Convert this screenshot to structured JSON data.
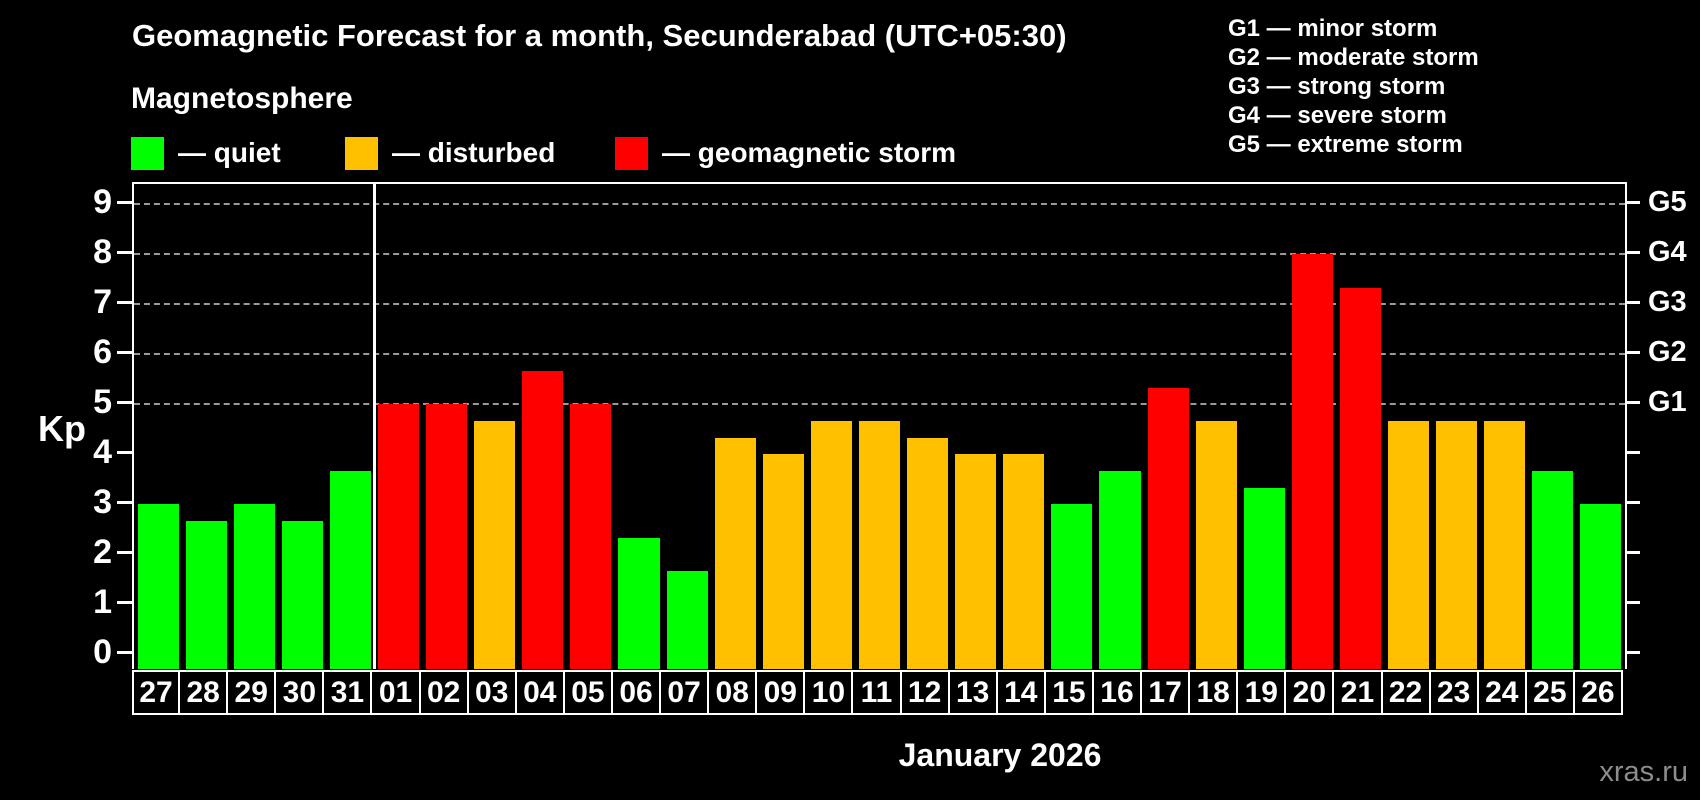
{
  "header": {
    "title": "Geomagnetic Forecast for a month, Secunderabad (UTC+05:30)",
    "subtitle": "Magnetosphere"
  },
  "legend": [
    {
      "key": "quiet",
      "label": "— quiet"
    },
    {
      "key": "disturbed",
      "label": "— disturbed"
    },
    {
      "key": "storm",
      "label": "— geomagnetic storm"
    }
  ],
  "g_legend": [
    "G1 — minor storm",
    "G2 — moderate storm",
    "G3 — strong storm",
    "G4 — severe storm",
    "G5 — extreme storm"
  ],
  "axis": {
    "ylabel": "Kp",
    "y_ticks": [
      0,
      1,
      2,
      3,
      4,
      5,
      6,
      7,
      8,
      9
    ],
    "right_labels": [
      {
        "label": "G1",
        "value": 5
      },
      {
        "label": "G2",
        "value": 6
      },
      {
        "label": "G3",
        "value": 7
      },
      {
        "label": "G4",
        "value": 8
      },
      {
        "label": "G5",
        "value": 9
      }
    ]
  },
  "watermark": "xras.ru",
  "chart_data": {
    "type": "bar",
    "title": "Geomagnetic Forecast for a month, Secunderabad (UTC+05:30)",
    "xlabel": "January 2026",
    "ylabel": "Kp",
    "ylim": [
      -0.3,
      9.4
    ],
    "gridlines_at": [
      5,
      6,
      7,
      8,
      9
    ],
    "grid": "dashed-horizontal",
    "legend_position": "top-left",
    "month_boundary_after_index": 4,
    "colors": {
      "quiet": "#00FF00",
      "disturbed": "#FFC000",
      "storm": "#FF0000"
    },
    "categories": [
      "27",
      "28",
      "29",
      "30",
      "31",
      "01",
      "02",
      "03",
      "04",
      "05",
      "06",
      "07",
      "08",
      "09",
      "10",
      "11",
      "12",
      "13",
      "14",
      "15",
      "16",
      "17",
      "18",
      "19",
      "20",
      "21",
      "22",
      "23",
      "24",
      "25",
      "26"
    ],
    "values": [
      3.0,
      2.67,
      3.0,
      2.67,
      3.67,
      5.0,
      5.0,
      4.67,
      5.67,
      5.0,
      2.33,
      1.67,
      4.33,
      4.0,
      4.67,
      4.67,
      4.33,
      4.0,
      4.0,
      3.0,
      3.67,
      5.33,
      4.67,
      3.33,
      8.0,
      7.33,
      4.67,
      4.67,
      4.67,
      3.67,
      3.0
    ],
    "statuses": [
      "quiet",
      "quiet",
      "quiet",
      "quiet",
      "quiet",
      "storm",
      "storm",
      "disturbed",
      "storm",
      "storm",
      "quiet",
      "quiet",
      "disturbed",
      "disturbed",
      "disturbed",
      "disturbed",
      "disturbed",
      "disturbed",
      "disturbed",
      "quiet",
      "quiet",
      "storm",
      "disturbed",
      "quiet",
      "storm",
      "storm",
      "disturbed",
      "disturbed",
      "disturbed",
      "quiet",
      "quiet"
    ]
  }
}
